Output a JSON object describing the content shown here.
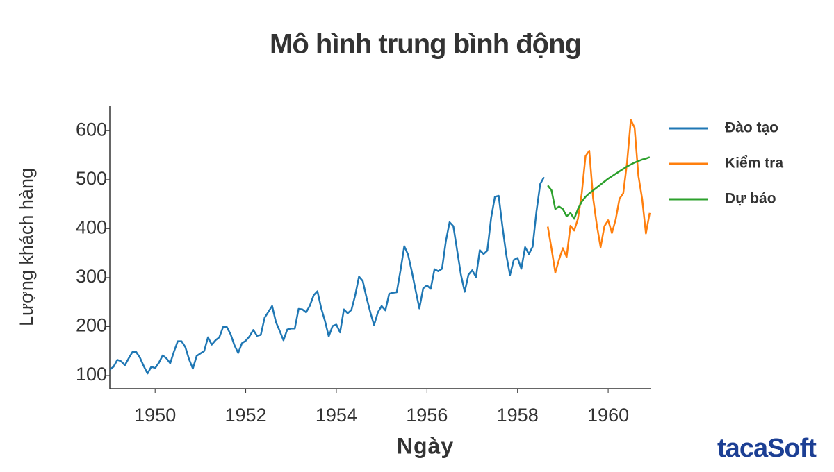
{
  "chart_data": {
    "type": "line",
    "title": "Mô hình trung bình động",
    "xlabel": "Ngày",
    "ylabel": "Lượng khách hàng",
    "xlim": [
      1949,
      1960.95
    ],
    "xticks": [
      1950,
      1952,
      1954,
      1956,
      1958,
      1960
    ],
    "ylim": [
      73,
      650
    ],
    "yticks": [
      100,
      200,
      300,
      400,
      500,
      600
    ],
    "grid": false,
    "legend": "outside-right",
    "series": [
      {
        "name": "Đào tạo",
        "color": "#1f77b4",
        "x": [
          1949,
          1949.083,
          1949.167,
          1949.25,
          1949.333,
          1949.417,
          1949.5,
          1949.583,
          1949.667,
          1949.75,
          1949.833,
          1949.917,
          1950,
          1950.083,
          1950.167,
          1950.25,
          1950.333,
          1950.417,
          1950.5,
          1950.583,
          1950.667,
          1950.75,
          1950.833,
          1950.917,
          1951,
          1951.083,
          1951.167,
          1951.25,
          1951.333,
          1951.417,
          1951.5,
          1951.583,
          1951.667,
          1951.75,
          1951.833,
          1951.917,
          1952,
          1952.083,
          1952.167,
          1952.25,
          1952.333,
          1952.417,
          1952.5,
          1952.583,
          1952.667,
          1952.75,
          1952.833,
          1952.917,
          1953,
          1953.083,
          1953.167,
          1953.25,
          1953.333,
          1953.417,
          1953.5,
          1953.583,
          1953.667,
          1953.75,
          1953.833,
          1953.917,
          1954,
          1954.083,
          1954.167,
          1954.25,
          1954.333,
          1954.417,
          1954.5,
          1954.583,
          1954.667,
          1954.75,
          1954.833,
          1954.917,
          1955,
          1955.083,
          1955.167,
          1955.25,
          1955.333,
          1955.417,
          1955.5,
          1955.583,
          1955.667,
          1955.75,
          1955.833,
          1955.917,
          1956,
          1956.083,
          1956.167,
          1956.25,
          1956.333,
          1956.417,
          1956.5,
          1956.583,
          1956.667,
          1956.75,
          1956.833,
          1956.917,
          1957,
          1957.083,
          1957.167,
          1957.25,
          1957.333,
          1957.417,
          1957.5,
          1957.583,
          1957.667,
          1957.75,
          1957.833,
          1957.917,
          1958,
          1958.083,
          1958.167,
          1958.25,
          1958.333,
          1958.417,
          1958.5,
          1958.583
        ],
        "values": [
          112,
          118,
          132,
          129,
          121,
          135,
          148,
          148,
          136,
          119,
          104,
          118,
          115,
          126,
          141,
          135,
          125,
          149,
          170,
          170,
          158,
          133,
          114,
          140,
          145,
          150,
          178,
          163,
          172,
          178,
          199,
          199,
          184,
          162,
          146,
          166,
          171,
          180,
          193,
          181,
          183,
          218,
          230,
          242,
          209,
          191,
          172,
          194,
          196,
          196,
          236,
          235,
          229,
          243,
          264,
          272,
          237,
          211,
          180,
          201,
          204,
          188,
          235,
          227,
          234,
          264,
          302,
          293,
          259,
          229,
          203,
          229,
          242,
          233,
          267,
          269,
          270,
          315,
          364,
          347,
          312,
          274,
          237,
          278,
          284,
          277,
          317,
          313,
          318,
          374,
          413,
          405,
          355,
          306,
          271,
          306,
          315,
          301,
          356,
          348,
          355,
          422,
          465,
          467,
          404,
          347,
          305,
          336,
          340,
          318,
          362,
          348,
          363,
          435,
          491,
          505
        ]
      },
      {
        "name": "Kiểm tra",
        "color": "#ff7f0e",
        "x": [
          1958.667,
          1958.75,
          1958.833,
          1958.917,
          1959,
          1959.083,
          1959.167,
          1959.25,
          1959.333,
          1959.417,
          1959.5,
          1959.583,
          1959.667,
          1959.75,
          1959.833,
          1959.917,
          1960,
          1960.083,
          1960.167,
          1960.25,
          1960.333,
          1960.417,
          1960.5,
          1960.583,
          1960.667,
          1960.75,
          1960.833,
          1960.917
        ],
        "values": [
          404,
          359,
          310,
          337,
          360,
          342,
          406,
          396,
          420,
          472,
          548,
          559,
          463,
          407,
          362,
          405,
          417,
          391,
          419,
          461,
          472,
          535,
          622,
          606,
          508,
          461,
          390,
          432
        ]
      },
      {
        "name": "Dự báo",
        "color": "#2ca02c",
        "x": [
          1958.667,
          1958.75,
          1958.833,
          1958.917,
          1959,
          1959.083,
          1959.167,
          1959.25,
          1959.333,
          1959.417,
          1959.5,
          1959.583,
          1959.667,
          1959.75,
          1959.833,
          1959.917,
          1960,
          1960.083,
          1960.167,
          1960.25,
          1960.333,
          1960.417,
          1960.5,
          1960.583,
          1960.667,
          1960.75,
          1960.833,
          1960.917
        ],
        "values": [
          488,
          478,
          440,
          445,
          440,
          425,
          432,
          420,
          440,
          455,
          465,
          472,
          478,
          484,
          490,
          496,
          502,
          507,
          512,
          517,
          522,
          527,
          531,
          535,
          538,
          541,
          543,
          546
        ]
      }
    ]
  },
  "logo": "tacaSoft"
}
